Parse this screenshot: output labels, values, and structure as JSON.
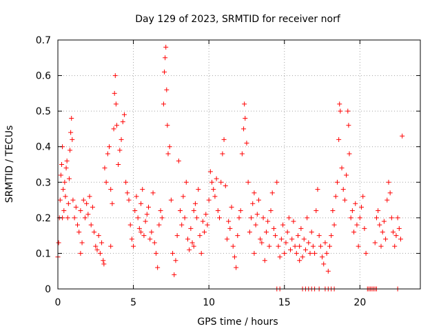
{
  "colors": {
    "series": "#ff0000",
    "grid": "#a0a0a0",
    "axis": "#000000"
  },
  "chart_data": {
    "type": "scatter",
    "title": "Day 129 of 2023, SRMTID for receiver norf",
    "xlabel": "GPS time / hours",
    "ylabel": "SRMTID / TECUs",
    "xlim": [
      0,
      24
    ],
    "ylim": [
      0,
      0.7
    ],
    "grid": true,
    "x_ticks": [
      0,
      5,
      10,
      15,
      20
    ],
    "x_tick_labels": [
      "0",
      "5",
      "10",
      "15",
      "20"
    ],
    "y_ticks": [
      0,
      0.1,
      0.2,
      0.3,
      0.4,
      0.5,
      0.6,
      0.7
    ],
    "y_tick_labels": [
      "0",
      "0.1",
      "0.2",
      "0.3",
      "0.4",
      "0.5",
      "0.6",
      "0.7"
    ],
    "marker": "+",
    "series": [
      {
        "name": "SRMTID",
        "points": [
          [
            0.0,
            0.09
          ],
          [
            0.05,
            0.13
          ],
          [
            0.1,
            0.2
          ],
          [
            0.15,
            0.25
          ],
          [
            0.2,
            0.32
          ],
          [
            0.25,
            0.35
          ],
          [
            0.3,
            0.4
          ],
          [
            0.35,
            0.28
          ],
          [
            0.4,
            0.22
          ],
          [
            0.45,
            0.3
          ],
          [
            0.5,
            0.26
          ],
          [
            0.55,
            0.34
          ],
          [
            0.6,
            0.36
          ],
          [
            0.65,
            0.2
          ],
          [
            0.7,
            0.24
          ],
          [
            0.75,
            0.31
          ],
          [
            0.8,
            0.39
          ],
          [
            0.85,
            0.44
          ],
          [
            0.9,
            0.48
          ],
          [
            0.95,
            0.42
          ],
          [
            1.0,
            0.25
          ],
          [
            1.1,
            0.2
          ],
          [
            1.2,
            0.23
          ],
          [
            1.3,
            0.18
          ],
          [
            1.4,
            0.16
          ],
          [
            1.5,
            0.22
          ],
          [
            1.6,
            0.13
          ],
          [
            1.7,
            0.25
          ],
          [
            1.8,
            0.2
          ],
          [
            1.9,
            0.24
          ],
          [
            2.0,
            0.21
          ],
          [
            2.1,
            0.26
          ],
          [
            2.2,
            0.18
          ],
          [
            2.3,
            0.23
          ],
          [
            2.4,
            0.16
          ],
          [
            2.5,
            0.12
          ],
          [
            2.6,
            0.11
          ],
          [
            2.7,
            0.15
          ],
          [
            2.8,
            0.1
          ],
          [
            2.9,
            0.13
          ],
          [
            3.0,
            0.08
          ],
          [
            3.05,
            0.07
          ],
          [
            3.1,
            0.34
          ],
          [
            3.2,
            0.3
          ],
          [
            3.3,
            0.38
          ],
          [
            3.4,
            0.4
          ],
          [
            3.5,
            0.28
          ],
          [
            3.6,
            0.24
          ],
          [
            3.7,
            0.45
          ],
          [
            3.75,
            0.55
          ],
          [
            3.8,
            0.6
          ],
          [
            3.85,
            0.52
          ],
          [
            3.9,
            0.46
          ],
          [
            4.0,
            0.35
          ],
          [
            4.1,
            0.39
          ],
          [
            4.2,
            0.42
          ],
          [
            4.3,
            0.47
          ],
          [
            4.4,
            0.49
          ],
          [
            4.5,
            0.3
          ],
          [
            4.6,
            0.27
          ],
          [
            4.7,
            0.25
          ],
          [
            4.8,
            0.18
          ],
          [
            4.9,
            0.14
          ],
          [
            5.0,
            0.12
          ],
          [
            5.1,
            0.22
          ],
          [
            5.2,
            0.26
          ],
          [
            5.3,
            0.2
          ],
          [
            5.4,
            0.17
          ],
          [
            5.5,
            0.24
          ],
          [
            5.6,
            0.28
          ],
          [
            5.7,
            0.15
          ],
          [
            5.8,
            0.19
          ],
          [
            5.9,
            0.21
          ],
          [
            6.0,
            0.23
          ],
          [
            6.1,
            0.14
          ],
          [
            6.2,
            0.16
          ],
          [
            6.3,
            0.27
          ],
          [
            6.4,
            0.13
          ],
          [
            6.5,
            0.1
          ],
          [
            6.6,
            0.06
          ],
          [
            6.7,
            0.18
          ],
          [
            6.8,
            0.22
          ],
          [
            6.9,
            0.2
          ],
          [
            7.0,
            0.52
          ],
          [
            7.05,
            0.61
          ],
          [
            7.1,
            0.65
          ],
          [
            7.15,
            0.68
          ],
          [
            7.2,
            0.56
          ],
          [
            7.25,
            0.46
          ],
          [
            7.3,
            0.38
          ],
          [
            7.4,
            0.4
          ],
          [
            7.5,
            0.25
          ],
          [
            7.6,
            0.1
          ],
          [
            7.7,
            0.04
          ],
          [
            7.8,
            0.08
          ],
          [
            7.9,
            0.15
          ],
          [
            8.0,
            0.36
          ],
          [
            8.1,
            0.22
          ],
          [
            8.2,
            0.18
          ],
          [
            8.3,
            0.26
          ],
          [
            8.4,
            0.2
          ],
          [
            8.5,
            0.3
          ],
          [
            8.6,
            0.14
          ],
          [
            8.7,
            0.11
          ],
          [
            8.8,
            0.17
          ],
          [
            8.9,
            0.13
          ],
          [
            9.0,
            0.12
          ],
          [
            9.1,
            0.24
          ],
          [
            9.2,
            0.2
          ],
          [
            9.3,
            0.28
          ],
          [
            9.4,
            0.15
          ],
          [
            9.5,
            0.1
          ],
          [
            9.6,
            0.19
          ],
          [
            9.7,
            0.16
          ],
          [
            9.8,
            0.21
          ],
          [
            9.9,
            0.18
          ],
          [
            10.0,
            0.25
          ],
          [
            10.1,
            0.33
          ],
          [
            10.2,
            0.3
          ],
          [
            10.3,
            0.28
          ],
          [
            10.4,
            0.26
          ],
          [
            10.5,
            0.31
          ],
          [
            10.6,
            0.22
          ],
          [
            10.7,
            0.2
          ],
          [
            10.8,
            0.3
          ],
          [
            10.9,
            0.38
          ],
          [
            11.0,
            0.42
          ],
          [
            11.1,
            0.29
          ],
          [
            11.2,
            0.14
          ],
          [
            11.3,
            0.19
          ],
          [
            11.4,
            0.17
          ],
          [
            11.5,
            0.23
          ],
          [
            11.6,
            0.12
          ],
          [
            11.7,
            0.09
          ],
          [
            11.8,
            0.06
          ],
          [
            11.9,
            0.15
          ],
          [
            12.0,
            0.2
          ],
          [
            12.1,
            0.22
          ],
          [
            12.2,
            0.38
          ],
          [
            12.3,
            0.45
          ],
          [
            12.35,
            0.52
          ],
          [
            12.4,
            0.48
          ],
          [
            12.5,
            0.41
          ],
          [
            12.6,
            0.3
          ],
          [
            12.7,
            0.16
          ],
          [
            12.8,
            0.2
          ],
          [
            12.9,
            0.24
          ],
          [
            13.0,
            0.1
          ],
          [
            13.1,
            0.18
          ],
          [
            13.2,
            0.21
          ],
          [
            13.3,
            0.25
          ],
          [
            13.4,
            0.14
          ],
          [
            13.5,
            0.13
          ],
          [
            13.6,
            0.2
          ],
          [
            13.7,
            0.08
          ],
          [
            13.8,
            0.16
          ],
          [
            13.9,
            0.19
          ],
          [
            14.0,
            0.12
          ],
          [
            14.1,
            0.22
          ],
          [
            14.2,
            0.27
          ],
          [
            14.3,
            0.17
          ],
          [
            14.4,
            0.15
          ],
          [
            14.5,
            0.3
          ],
          [
            14.6,
            0.12
          ],
          [
            14.7,
            0.09
          ],
          [
            14.8,
            0.14
          ],
          [
            14.9,
            0.18
          ],
          [
            15.0,
            0.1
          ],
          [
            15.1,
            0.13
          ],
          [
            15.2,
            0.16
          ],
          [
            15.3,
            0.2
          ],
          [
            15.4,
            0.11
          ],
          [
            15.5,
            0.14
          ],
          [
            15.6,
            0.19
          ],
          [
            15.7,
            0.12
          ],
          [
            15.8,
            0.1
          ],
          [
            15.9,
            0.15
          ],
          [
            16.0,
            0.12
          ],
          [
            16.1,
            0.17
          ],
          [
            16.2,
            0.09
          ],
          [
            16.3,
            0.14
          ],
          [
            16.4,
            0.11
          ],
          [
            16.5,
            0.2
          ],
          [
            16.6,
            0.13
          ],
          [
            16.7,
            0.1
          ],
          [
            16.8,
            0.16
          ],
          [
            16.9,
            0.12
          ],
          [
            17.0,
            0.1
          ],
          [
            17.1,
            0.22
          ],
          [
            17.2,
            0.28
          ],
          [
            17.3,
            0.15
          ],
          [
            17.4,
            0.12
          ],
          [
            17.5,
            0.09
          ],
          [
            17.6,
            0.07
          ],
          [
            17.7,
            0.13
          ],
          [
            17.8,
            0.1
          ],
          [
            17.9,
            0.05
          ],
          [
            18.0,
            0.12
          ],
          [
            18.1,
            0.15
          ],
          [
            18.2,
            0.22
          ],
          [
            18.3,
            0.18
          ],
          [
            18.4,
            0.26
          ],
          [
            18.5,
            0.3
          ],
          [
            18.6,
            0.42
          ],
          [
            18.65,
            0.52
          ],
          [
            18.7,
            0.5
          ],
          [
            18.8,
            0.34
          ],
          [
            18.9,
            0.28
          ],
          [
            19.0,
            0.25
          ],
          [
            19.1,
            0.32
          ],
          [
            19.2,
            0.5
          ],
          [
            19.25,
            0.46
          ],
          [
            19.3,
            0.38
          ],
          [
            19.4,
            0.2
          ],
          [
            19.5,
            0.22
          ],
          [
            19.6,
            0.16
          ],
          [
            19.7,
            0.24
          ],
          [
            19.8,
            0.18
          ],
          [
            19.9,
            0.12
          ],
          [
            20.0,
            0.2
          ],
          [
            20.1,
            0.23
          ],
          [
            20.2,
            0.26
          ],
          [
            20.3,
            0.17
          ],
          [
            20.4,
            0.1
          ],
          [
            21.0,
            0.13
          ],
          [
            21.1,
            0.2
          ],
          [
            21.2,
            0.22
          ],
          [
            21.3,
            0.18
          ],
          [
            21.4,
            0.12
          ],
          [
            21.5,
            0.16
          ],
          [
            21.6,
            0.19
          ],
          [
            21.7,
            0.14
          ],
          [
            21.8,
            0.25
          ],
          [
            21.9,
            0.3
          ],
          [
            22.0,
            0.27
          ],
          [
            22.1,
            0.2
          ],
          [
            22.2,
            0.16
          ],
          [
            22.3,
            0.12
          ],
          [
            22.4,
            0.15
          ],
          [
            22.5,
            0.2
          ],
          [
            22.6,
            0.17
          ],
          [
            22.7,
            0.14
          ],
          [
            22.8,
            0.43
          ],
          [
            0.3,
            0.2
          ],
          [
            1.5,
            0.1
          ],
          [
            3.5,
            0.12
          ],
          [
            5.5,
            0.16
          ],
          [
            9.0,
            0.22
          ],
          [
            13.0,
            0.27
          ],
          [
            16.0,
            0.08
          ],
          [
            14.5,
            0.0
          ],
          [
            14.7,
            0.0
          ],
          [
            16.2,
            0.0
          ],
          [
            16.4,
            0.0
          ],
          [
            16.6,
            0.0
          ],
          [
            16.8,
            0.0
          ],
          [
            17.0,
            0.0
          ],
          [
            17.3,
            0.0
          ],
          [
            17.7,
            0.0
          ],
          [
            17.9,
            0.0
          ],
          [
            18.1,
            0.0
          ],
          [
            18.3,
            0.0
          ],
          [
            20.5,
            0.0
          ],
          [
            20.6,
            0.0
          ],
          [
            20.7,
            0.0
          ],
          [
            20.8,
            0.0
          ],
          [
            20.9,
            0.0
          ],
          [
            21.0,
            0.0
          ],
          [
            21.1,
            0.0
          ],
          [
            22.5,
            0.0
          ]
        ]
      }
    ]
  }
}
